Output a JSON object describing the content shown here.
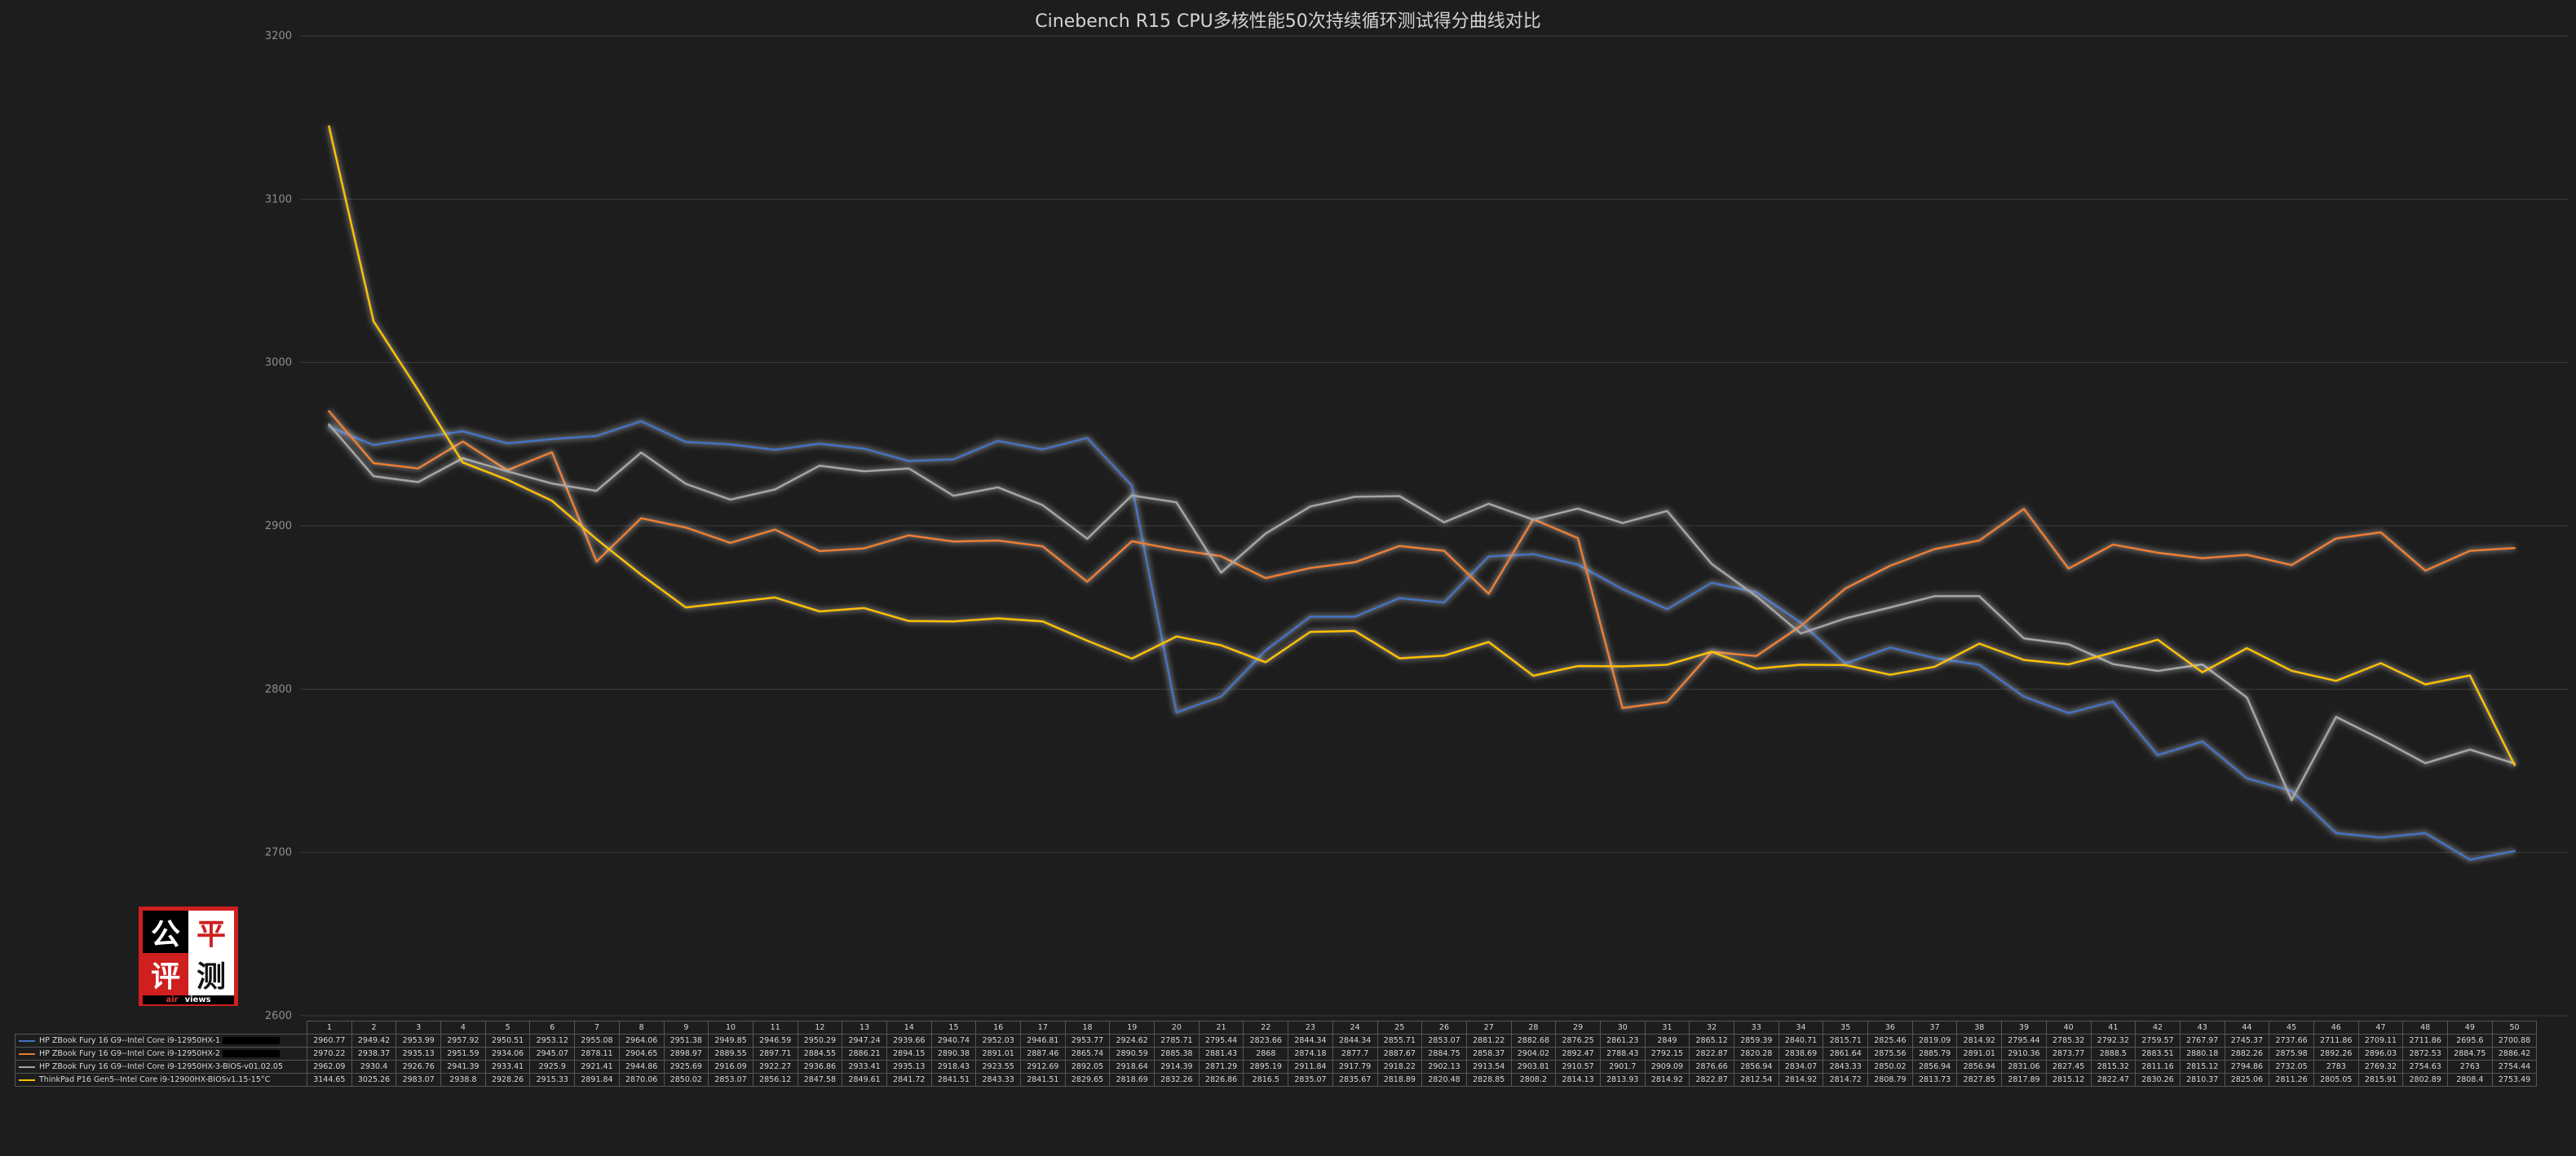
{
  "colors": {
    "background": "#1d1d1d",
    "gridline": "#3c3c3c",
    "axis_text": "#8f8f8f",
    "table_border": "#565656",
    "logo_red": "#cf1f1f"
  },
  "watermark": {
    "chars": [
      "公",
      "平",
      "评",
      "测"
    ],
    "sub_left": "air",
    "sub_right": "views"
  },
  "chart_data": {
    "type": "line",
    "title": "Cinebench R15 CPU多核性能50次持续循环测试得分曲线对比",
    "xlabel": "",
    "ylabel": "",
    "ylim": [
      2600,
      3200
    ],
    "ytick_interval": 100,
    "yticks": [
      3200,
      3100,
      3000,
      2900,
      2800,
      2700,
      2600
    ],
    "grid": true,
    "legend_position": "data-table-left",
    "x": [
      1,
      2,
      3,
      4,
      5,
      6,
      7,
      8,
      9,
      10,
      11,
      12,
      13,
      14,
      15,
      16,
      17,
      18,
      19,
      20,
      21,
      22,
      23,
      24,
      25,
      26,
      27,
      28,
      29,
      30,
      31,
      32,
      33,
      34,
      35,
      36,
      37,
      38,
      39,
      40,
      41,
      42,
      43,
      44,
      45,
      46,
      47,
      48,
      49,
      50
    ],
    "series": [
      {
        "name": "HP ZBook Fury 16 G9--Intel Core i9-12950HX-1",
        "color": "#4472c4",
        "redacted": true,
        "values": [
          2960.77,
          2949.42,
          2953.99,
          2957.92,
          2950.51,
          2953.12,
          2955.08,
          2964.06,
          2951.38,
          2949.85,
          2946.59,
          2950.29,
          2947.24,
          2939.66,
          2940.74,
          2952.03,
          2946.81,
          2953.77,
          2924.62,
          2785.71,
          2795.44,
          2823.66,
          2844.34,
          2844.34,
          2855.71,
          2853.07,
          2881.22,
          2882.68,
          2876.25,
          2861.23,
          2849,
          2865.12,
          2859.39,
          2840.71,
          2815.71,
          2825.46,
          2819.09,
          2814.92,
          2795.44,
          2785.32,
          2792.32,
          2759.57,
          2767.97,
          2745.37,
          2737.66,
          2711.86,
          2709.11,
          2711.86,
          2695.6,
          2700.88
        ]
      },
      {
        "name": "HP ZBook Fury 16 G9--Intel Core i9-12950HX-2",
        "color": "#ed7d31",
        "redacted": true,
        "values": [
          2970.22,
          2938.37,
          2935.13,
          2951.59,
          2934.06,
          2945.07,
          2878.11,
          2904.65,
          2898.97,
          2889.55,
          2897.71,
          2884.55,
          2886.21,
          2894.15,
          2890.38,
          2891.01,
          2887.46,
          2865.74,
          2890.59,
          2885.38,
          2881.43,
          2868,
          2874.18,
          2877.7,
          2887.67,
          2884.75,
          2858.37,
          2904.02,
          2892.47,
          2788.43,
          2792.15,
          2822.87,
          2820.28,
          2838.69,
          2861.64,
          2875.56,
          2885.79,
          2891.01,
          2910.36,
          2873.77,
          2888.5,
          2883.51,
          2880.18,
          2882.26,
          2875.98,
          2892.26,
          2896.03,
          2872.53,
          2884.75,
          2886.42
        ]
      },
      {
        "name": "HP ZBook Fury 16 G9--Intel Core i9-12950HX-3-BIOS-v01.02.05",
        "color": "#a5a5a5",
        "redacted": false,
        "values": [
          2962.09,
          2930.4,
          2926.76,
          2941.39,
          2933.41,
          2925.9,
          2921.41,
          2944.86,
          2925.69,
          2916.09,
          2922.27,
          2936.86,
          2933.41,
          2935.13,
          2918.43,
          2923.55,
          2912.69,
          2892.05,
          2918.64,
          2914.39,
          2871.29,
          2895.19,
          2911.84,
          2917.79,
          2918.22,
          2902.13,
          2913.54,
          2903.81,
          2910.57,
          2901.7,
          2909.09,
          2876.66,
          2856.94,
          2834.07,
          2843.33,
          2850.02,
          2856.94,
          2856.94,
          2831.06,
          2827.45,
          2815.32,
          2811.16,
          2815.12,
          2794.86,
          2732.05,
          2783,
          2769.32,
          2754.63,
          2763,
          2754.44
        ]
      },
      {
        "name": "ThinkPad P16 Gen5--Intel Core i9-12900HX-BIOSv1.15-15°C",
        "color": "#ffc000",
        "redacted": false,
        "values": [
          3144.65,
          3025.26,
          2983.07,
          2938.8,
          2928.26,
          2915.33,
          2891.84,
          2870.06,
          2850.02,
          2853.07,
          2856.12,
          2847.58,
          2849.61,
          2841.72,
          2841.51,
          2843.33,
          2841.51,
          2829.65,
          2818.69,
          2832.26,
          2826.86,
          2816.5,
          2835.07,
          2835.67,
          2818.89,
          2820.48,
          2828.85,
          2808.2,
          2814.13,
          2813.93,
          2814.92,
          2822.87,
          2812.54,
          2814.92,
          2814.72,
          2808.79,
          2813.73,
          2827.85,
          2817.89,
          2815.12,
          2822.47,
          2830.26,
          2810.37,
          2825.06,
          2811.26,
          2805.05,
          2815.91,
          2802.89,
          2808.4,
          2753.49
        ]
      }
    ]
  }
}
